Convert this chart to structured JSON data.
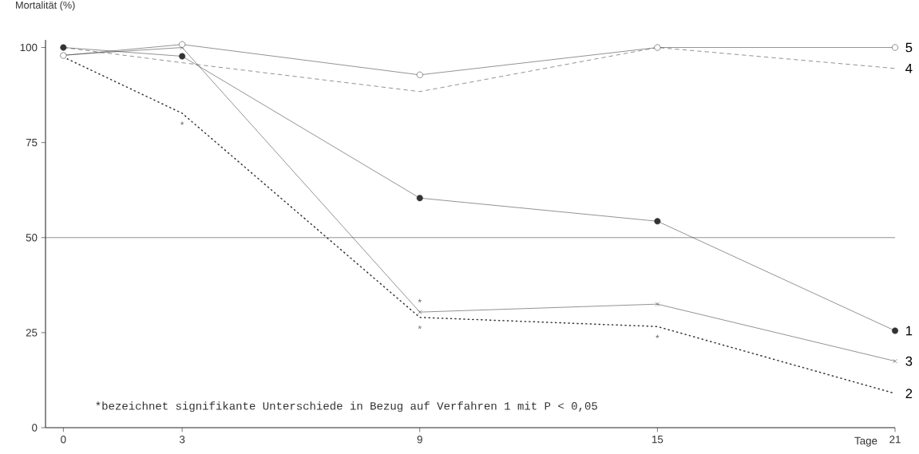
{
  "chart_data": {
    "type": "line",
    "ylabel": "Mortalität (%)",
    "xlabel": "Tage",
    "x": [
      0,
      3,
      9,
      15,
      21
    ],
    "xlim": [
      -0.45,
      21
    ],
    "ylim": [
      0,
      102
    ],
    "xticks": [
      0,
      3,
      9,
      15,
      21
    ],
    "yticks": [
      0,
      25,
      50,
      75,
      100
    ],
    "grid": false,
    "series": [
      {
        "name": "1",
        "color": "#333333",
        "marker": "circle",
        "line_style": "solid",
        "values": [
          100,
          97.7,
          60.4,
          54.3,
          25.5
        ]
      },
      {
        "name": "2",
        "color": "#333333",
        "marker": "none",
        "line_style": "dotted",
        "values": [
          97.5,
          82.7,
          29,
          26.6,
          9
        ]
      },
      {
        "name": "3",
        "color": "#333333",
        "marker": "cross",
        "line_style": "solid",
        "values": [
          98,
          100,
          30.4,
          32.5,
          17.5
        ]
      },
      {
        "name": "4",
        "color": "#333333",
        "marker": "none",
        "line_style": "dashed",
        "values": [
          100,
          96,
          88.4,
          100,
          94.5
        ]
      },
      {
        "name": "5",
        "color": "#333333",
        "marker": "circle",
        "colors": [
          "#ffffff",
          "#ffffff",
          "#ffffff",
          "#ffffff",
          "#ffffff"
        ],
        "line_style": "solid",
        "values": [
          97.9,
          100.8,
          92.8,
          100,
          100
        ]
      }
    ],
    "ref_lines": [
      {
        "axis": "y",
        "value": 50,
        "color": "#333333"
      }
    ],
    "annotations": [
      {
        "text": "*",
        "x": 3,
        "y": 82.7
      },
      {
        "text": "*",
        "x": 9,
        "y": 30.4
      },
      {
        "text": "*",
        "x": 9,
        "y": 29
      },
      {
        "text": "*",
        "x": 15,
        "y": 26.6
      },
      "*bezeichnet signifikante Unterschiede in Bezug auf Verfahren 1 mit P < 0,05"
    ]
  }
}
